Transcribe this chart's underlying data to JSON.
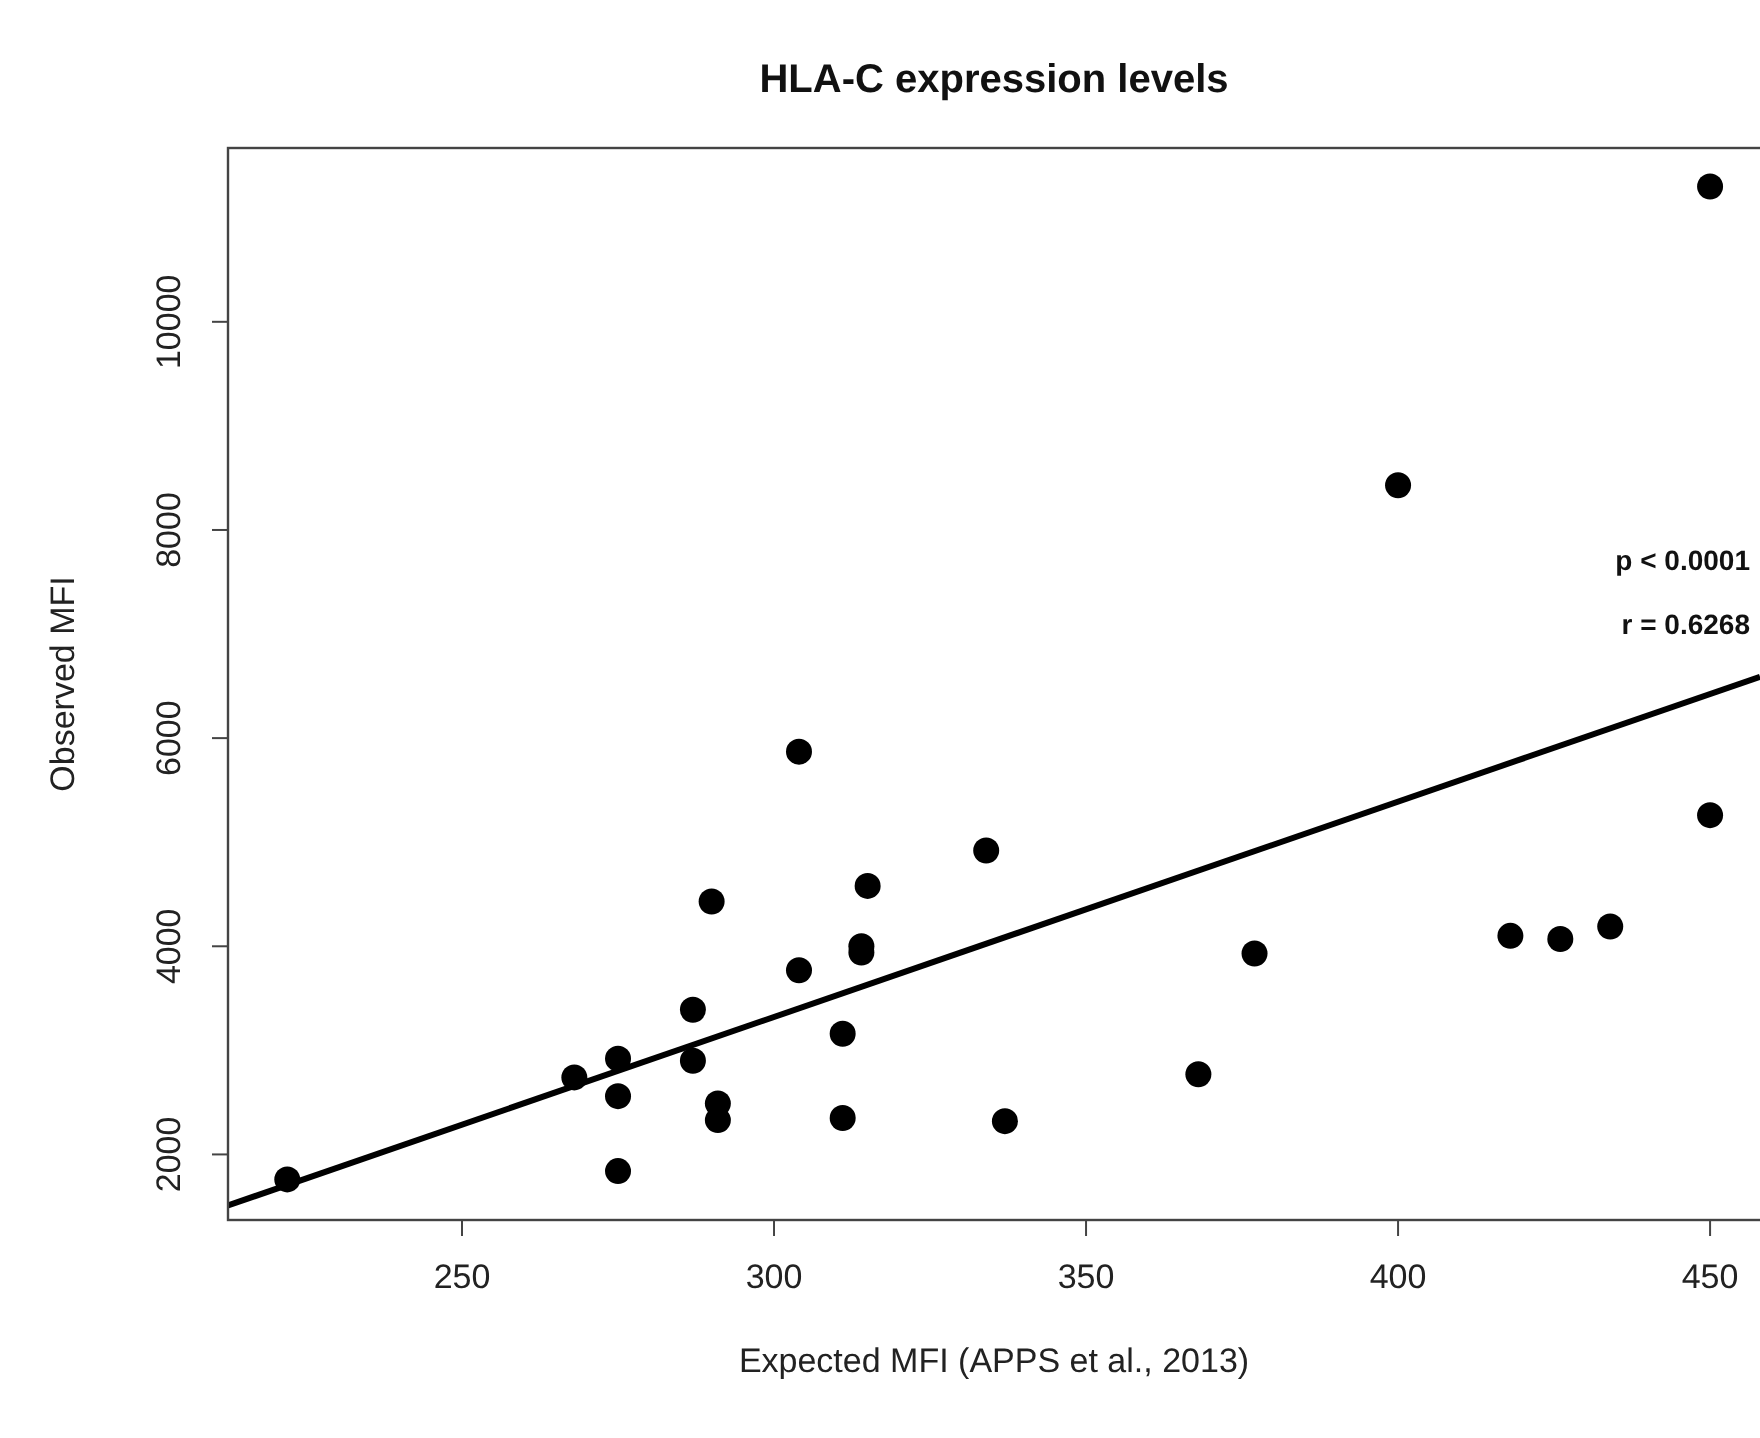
{
  "chart_data": {
    "type": "scatter",
    "title": "HLA-C expression levels",
    "xlabel": "Expected MFI (APPS et al., 2013)",
    "ylabel": "Observed MFI",
    "annotations": [
      "p < 0.0001",
      "r = 0.6268"
    ],
    "xlim": [
      212.5,
      458
    ],
    "xticks": [
      250,
      300,
      350,
      400,
      450
    ],
    "ylim": [
      1370,
      11670
    ],
    "yticks": [
      2000,
      4000,
      6000,
      8000,
      10000
    ],
    "series": [
      {
        "color": "#000000",
        "marker": "circle",
        "x": [
          222,
          268,
          275,
          275,
          275,
          287,
          287,
          290,
          291,
          291,
          304,
          304,
          311,
          311,
          314,
          314,
          315,
          334,
          337,
          368,
          377,
          400,
          418,
          426,
          434,
          450,
          450
        ],
        "values": [
          1760,
          2740,
          2920,
          2560,
          1840,
          3390,
          2900,
          4430,
          2490,
          2330,
          5870,
          3770,
          3160,
          2350,
          4000,
          3940,
          4580,
          4920,
          2320,
          2770,
          3930,
          8430,
          4100,
          4070,
          4190,
          5260,
          11300
        ]
      },
      {
        "type": "line",
        "color": "#000000",
        "marker": "none",
        "line_style": "solid",
        "x": [
          212.5,
          458
        ],
        "values": [
          1510,
          6590
        ]
      }
    ]
  }
}
